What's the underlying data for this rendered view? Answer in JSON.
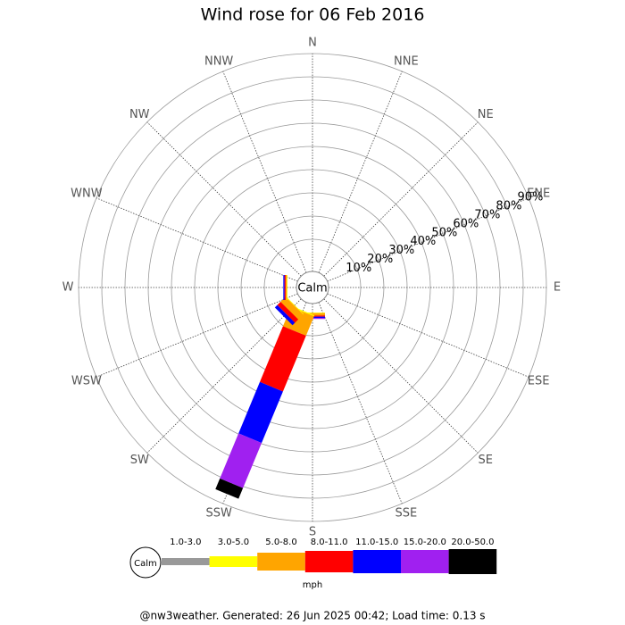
{
  "chart_data": {
    "type": "windrose",
    "title": "Wind rose for 06 Feb 2016",
    "directions": [
      "N",
      "NNE",
      "NE",
      "ENE",
      "E",
      "ESE",
      "SE",
      "SSE",
      "S",
      "SSW",
      "SW",
      "WSW",
      "W",
      "WNW",
      "NW",
      "NNW"
    ],
    "calm_label": "Calm",
    "rlim": [
      0,
      90
    ],
    "rticks": [
      {
        "value": 10,
        "label": "10%"
      },
      {
        "value": 20,
        "label": "20%"
      },
      {
        "value": 30,
        "label": "30%"
      },
      {
        "value": 40,
        "label": "40%"
      },
      {
        "value": 50,
        "label": "50%"
      },
      {
        "value": 60,
        "label": "60%"
      },
      {
        "value": 70,
        "label": "70%"
      },
      {
        "value": 80,
        "label": "80%"
      },
      {
        "value": 90,
        "label": "90%"
      }
    ],
    "series": [
      {
        "name": "1.0-3.0",
        "color": "#999999",
        "values": [
          0,
          0,
          0,
          0,
          0,
          0,
          0,
          0,
          0,
          0,
          0,
          0,
          0,
          0,
          0,
          0
        ]
      },
      {
        "name": "3.0-5.0",
        "color": "#ffff00",
        "values": [
          0,
          0,
          0,
          0,
          0,
          0,
          0,
          0,
          0.3,
          0.5,
          0.3,
          0,
          0.3,
          0,
          0,
          0
        ]
      },
      {
        "name": "5.0-8.0",
        "color": "#ffa500",
        "values": [
          0,
          0,
          0,
          0,
          0,
          0,
          0,
          0,
          1,
          9,
          3,
          0,
          0.5,
          0,
          0,
          0
        ]
      },
      {
        "name": "8.0-11.0",
        "color": "#ff0000",
        "values": [
          0,
          0,
          0,
          0,
          0,
          0,
          0,
          0,
          0.5,
          26,
          2,
          0,
          0.5,
          0,
          0,
          0
        ]
      },
      {
        "name": "11.0-15.0",
        "color": "#0000ff",
        "values": [
          0,
          0,
          0,
          0,
          0,
          0,
          0,
          0,
          0.5,
          24,
          1.5,
          0,
          0.5,
          0,
          0,
          0
        ]
      },
      {
        "name": "15.0-20.0",
        "color": "#a020f0",
        "values": [
          0,
          0,
          0,
          0,
          0,
          0,
          0,
          0,
          0.5,
          21,
          0,
          0,
          0,
          0,
          0,
          0
        ]
      },
      {
        "name": "20.0-50.0",
        "color": "#000000",
        "values": [
          0,
          0,
          0,
          0,
          0,
          0,
          0,
          0,
          0,
          5,
          0,
          0,
          0,
          0,
          0,
          0
        ]
      }
    ],
    "units": "mph",
    "footer": "@nw3weather. Generated: 26 Jun 2025 00:42; Load time: 0.13 s"
  }
}
